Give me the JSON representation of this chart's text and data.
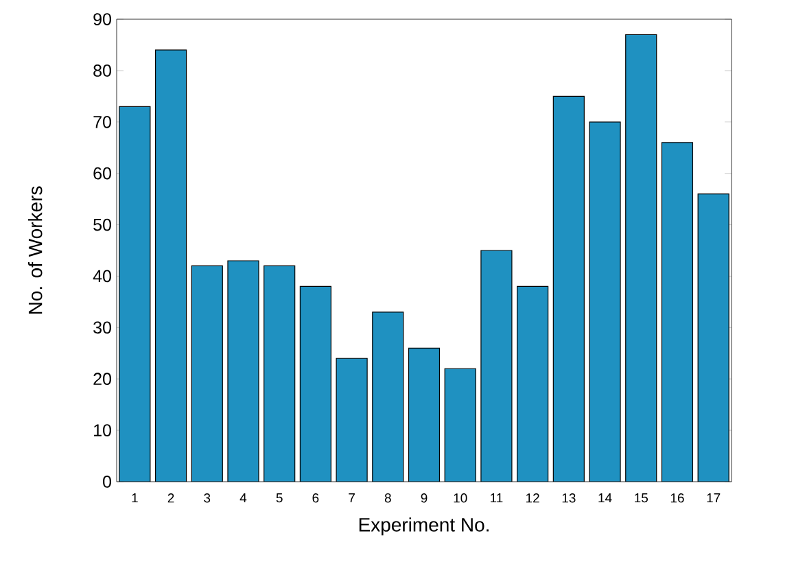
{
  "chart_data": {
    "type": "bar",
    "xlabel": "Experiment No.",
    "ylabel": "No. of Workers",
    "categories": [
      "1",
      "2",
      "3",
      "4",
      "5",
      "6",
      "7",
      "8",
      "9",
      "10",
      "11",
      "12",
      "13",
      "14",
      "15",
      "16",
      "17"
    ],
    "values": [
      73,
      84,
      42,
      43,
      42,
      38,
      24,
      33,
      26,
      22,
      45,
      38,
      75,
      70,
      87,
      66,
      56
    ],
    "color": "#1f91c1",
    "ylim": [
      0,
      90
    ],
    "yticks": [
      0,
      10,
      20,
      30,
      40,
      50,
      60,
      70,
      80,
      90
    ],
    "grid": false
  }
}
